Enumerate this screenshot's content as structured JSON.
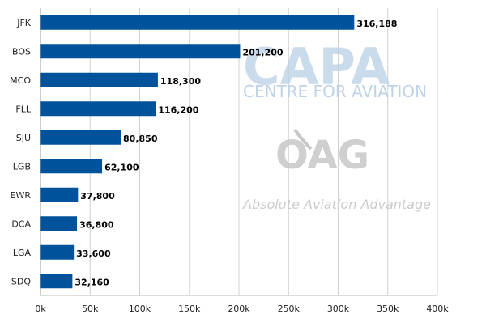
{
  "chart_data": {
    "type": "bar",
    "orientation": "horizontal",
    "categories": [
      "JFK",
      "BOS",
      "MCO",
      "FLL",
      "SJU",
      "LGB",
      "EWR",
      "DCA",
      "LGA",
      "SDQ"
    ],
    "values": [
      316188,
      201200,
      118300,
      116200,
      80850,
      62100,
      37800,
      36800,
      33600,
      32160
    ],
    "value_labels": [
      "316,188",
      "201,200",
      "118,300",
      "116,200",
      "80,850",
      "62,100",
      "37,800",
      "36,800",
      "33,600",
      "32,160"
    ],
    "x_ticks": [
      0,
      50000,
      100000,
      150000,
      200000,
      250000,
      300000,
      350000,
      400000
    ],
    "x_tick_labels": [
      "0k",
      "50k",
      "100k",
      "150k",
      "200k",
      "250k",
      "300k",
      "350k",
      "400k"
    ],
    "xlim": [
      0,
      400000
    ],
    "title": "",
    "xlabel": "",
    "ylabel": "",
    "grid": "vertical",
    "legend": "none",
    "bar_color": "#00539b"
  },
  "watermarks": {
    "capa_logo": "CAPA",
    "capa_sub": "CENTRE FOR AVIATION",
    "oag_logo": "OAG",
    "oag_tagline": "Absolute Aviation Advantage",
    "capa_color": "#b9cfe6",
    "oag_color": "#c7c7c7"
  }
}
